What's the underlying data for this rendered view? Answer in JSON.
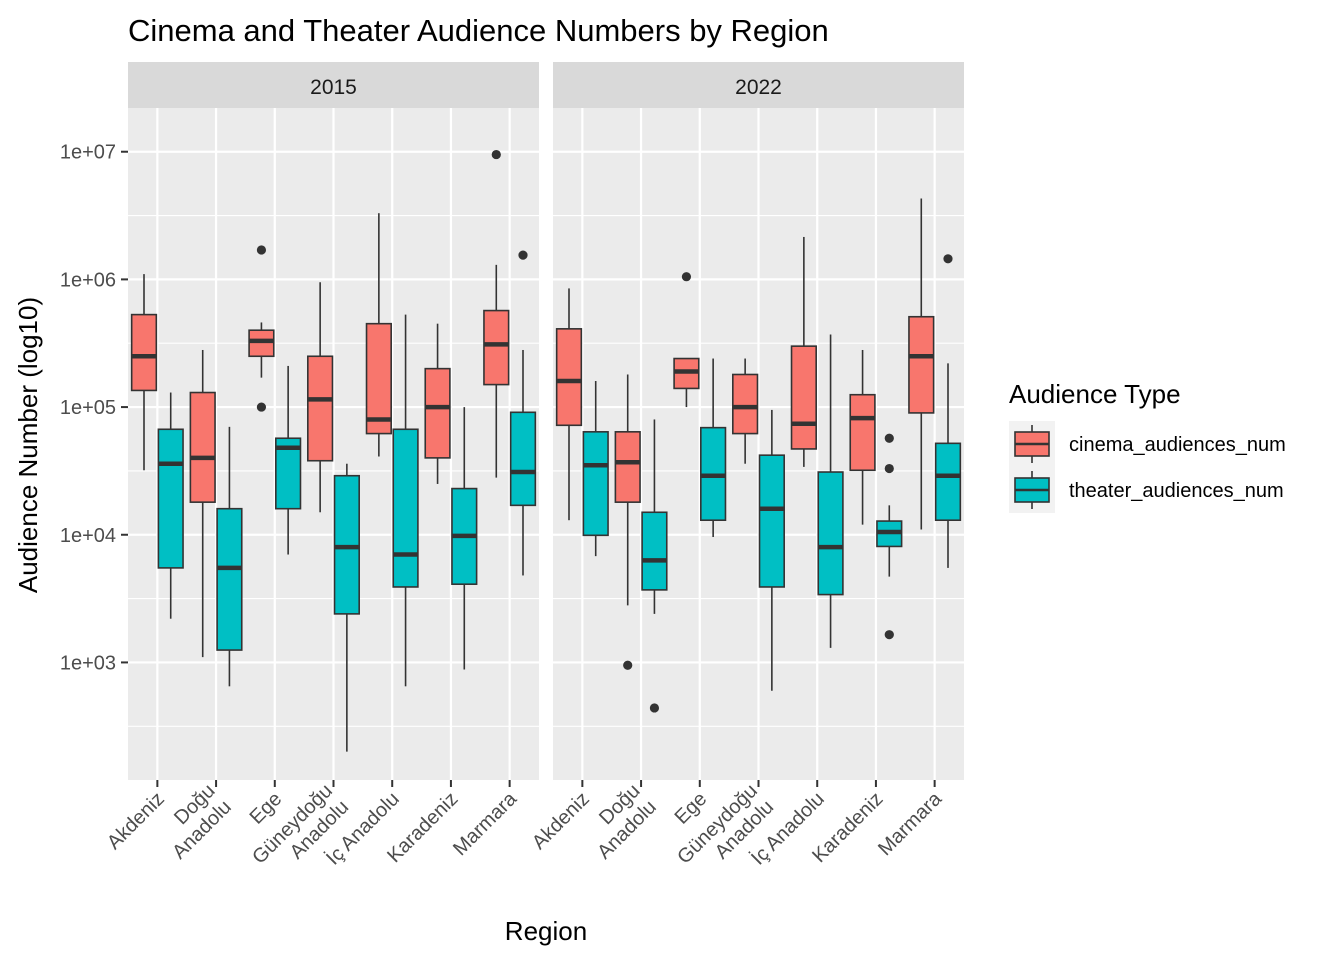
{
  "chart_data": {
    "type": "boxplot",
    "title": "Cinema and Theater Audience Numbers by Region",
    "xlabel": "Region",
    "ylabel": "Audience Number (log10)",
    "y_scale": "log10",
    "ylim": [
      120,
      22000000
    ],
    "y_ticks": [
      {
        "value": 1000,
        "label": "1e+03"
      },
      {
        "value": 10000,
        "label": "1e+04"
      },
      {
        "value": 100000,
        "label": "1e+05"
      },
      {
        "value": 1000000,
        "label": "1e+06"
      },
      {
        "value": 10000000,
        "label": "1e+07"
      }
    ],
    "categories": [
      {
        "lines": [
          "Akdeniz"
        ]
      },
      {
        "lines": [
          "Doğu",
          "Anadolu"
        ]
      },
      {
        "lines": [
          "Ege"
        ]
      },
      {
        "lines": [
          "Güneydoğu",
          "Anadolu"
        ]
      },
      {
        "lines": [
          "İç Anadolu"
        ]
      },
      {
        "lines": [
          "Karadeniz"
        ]
      },
      {
        "lines": [
          "Marmara"
        ]
      }
    ],
    "grid": true,
    "legend": {
      "title": "Audience Type",
      "position": "right",
      "entries": [
        {
          "key": "cinema",
          "label": "cinema_audiences_num",
          "color": "#F8766D"
        },
        {
          "key": "theater",
          "label": "theater_audiences_num",
          "color": "#00BFC4"
        }
      ]
    },
    "facets": [
      {
        "label": "2015",
        "cinema": [
          {
            "min": 32000,
            "q1": 135000,
            "median": 250000,
            "q3": 530000,
            "max": 1100000,
            "outliers": []
          },
          {
            "min": 1100,
            "q1": 18000,
            "median": 40000,
            "q3": 130000,
            "max": 280000,
            "outliers": []
          },
          {
            "min": 170000,
            "q1": 250000,
            "median": 330000,
            "q3": 400000,
            "max": 460000,
            "outliers": [
              1700000,
              100000
            ]
          },
          {
            "min": 15000,
            "q1": 38000,
            "median": 115000,
            "q3": 250000,
            "max": 950000,
            "outliers": []
          },
          {
            "min": 41000,
            "q1": 62000,
            "median": 80000,
            "q3": 450000,
            "max": 3300000,
            "outliers": []
          },
          {
            "min": 25000,
            "q1": 40000,
            "median": 100000,
            "q3": 200000,
            "max": 450000,
            "outliers": []
          },
          {
            "min": 28000,
            "q1": 150000,
            "median": 310000,
            "q3": 570000,
            "max": 1300000,
            "outliers": [
              9500000
            ]
          }
        ],
        "theater": [
          {
            "min": 2200,
            "q1": 5500,
            "median": 36000,
            "q3": 67000,
            "max": 130000,
            "outliers": []
          },
          {
            "min": 650,
            "q1": 1250,
            "median": 5500,
            "q3": 16000,
            "max": 70000,
            "outliers": []
          },
          {
            "min": 7000,
            "q1": 16000,
            "median": 48000,
            "q3": 57000,
            "max": 210000,
            "outliers": []
          },
          {
            "min": 200,
            "q1": 2400,
            "median": 8000,
            "q3": 29000,
            "max": 36000,
            "outliers": []
          },
          {
            "min": 650,
            "q1": 3900,
            "median": 7000,
            "q3": 67000,
            "max": 530000,
            "outliers": []
          },
          {
            "min": 880,
            "q1": 4100,
            "median": 9800,
            "q3": 23000,
            "max": 100000,
            "outliers": []
          },
          {
            "min": 4800,
            "q1": 17000,
            "median": 31000,
            "q3": 91000,
            "max": 280000,
            "outliers": [
              1550000
            ]
          }
        ]
      },
      {
        "label": "2022",
        "cinema": [
          {
            "min": 13000,
            "q1": 72000,
            "median": 160000,
            "q3": 410000,
            "max": 850000,
            "outliers": []
          },
          {
            "min": 2800,
            "q1": 18000,
            "median": 37000,
            "q3": 64000,
            "max": 180000,
            "outliers": [
              950
            ]
          },
          {
            "min": 100000,
            "q1": 140000,
            "median": 190000,
            "q3": 240000,
            "max": 240000,
            "outliers": [
              1050000
            ]
          },
          {
            "min": 36000,
            "q1": 62000,
            "median": 100000,
            "q3": 180000,
            "max": 240000,
            "outliers": []
          },
          {
            "min": 34000,
            "q1": 47000,
            "median": 74000,
            "q3": 300000,
            "max": 2150000,
            "outliers": []
          },
          {
            "min": 12000,
            "q1": 32000,
            "median": 82000,
            "q3": 125000,
            "max": 280000,
            "outliers": []
          },
          {
            "min": 11000,
            "q1": 90000,
            "median": 250000,
            "q3": 510000,
            "max": 4300000,
            "outliers": []
          }
        ],
        "theater": [
          {
            "min": 6800,
            "q1": 9900,
            "median": 35000,
            "q3": 64000,
            "max": 160000,
            "outliers": []
          },
          {
            "min": 2400,
            "q1": 3700,
            "median": 6300,
            "q3": 15000,
            "max": 80000,
            "outliers": [
              440
            ]
          },
          {
            "min": 9600,
            "q1": 13000,
            "median": 29000,
            "q3": 69000,
            "max": 240000,
            "outliers": []
          },
          {
            "min": 600,
            "q1": 3900,
            "median": 16000,
            "q3": 42000,
            "max": 95000,
            "outliers": []
          },
          {
            "min": 1300,
            "q1": 3400,
            "median": 8000,
            "q3": 31000,
            "max": 370000,
            "outliers": []
          },
          {
            "min": 4700,
            "q1": 8100,
            "median": 10500,
            "q3": 12800,
            "max": 17000,
            "outliers": [
              57000,
              33000,
              1650
            ]
          },
          {
            "min": 5500,
            "q1": 13000,
            "median": 29000,
            "q3": 52000,
            "max": 220000,
            "outliers": [
              1450000
            ]
          }
        ]
      }
    ]
  }
}
